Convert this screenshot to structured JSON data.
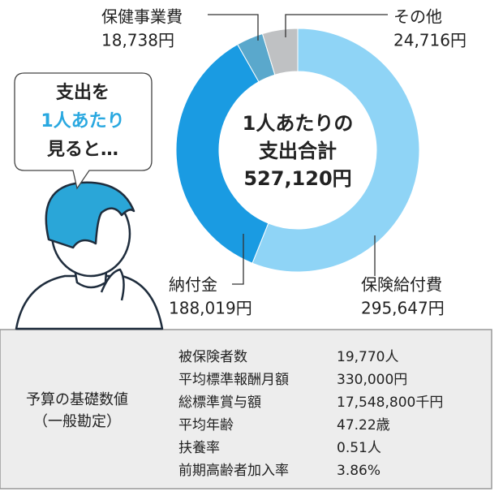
{
  "chart_data": {
    "type": "donut",
    "categories": [
      "保険給付費",
      "納付金",
      "保健事業費",
      "その他"
    ],
    "values": [
      295647,
      188019,
      18738,
      24716
    ],
    "value_labels": [
      "295,647円",
      "188,019円",
      "18,738円",
      "24,716円"
    ],
    "colors": [
      "#8fd4f6",
      "#1a9be2",
      "#5aa8cc",
      "#bfc1c3"
    ],
    "center_text": [
      "1人あたりの",
      "支出合計",
      "527,120円"
    ]
  },
  "bubble": [
    "支出を",
    "1人あたり",
    "見ると…"
  ],
  "budget": {
    "title": [
      "予算の基礎数値",
      "（一般勘定）"
    ],
    "rows": [
      [
        "被保険者数",
        "19,770人"
      ],
      [
        "平均標準報酬月額",
        "330,000円"
      ],
      [
        "総標準賞与額",
        "17,548,800千円"
      ],
      [
        "平均年齢",
        "47.22歳"
      ],
      [
        "扶養率",
        "0.51人"
      ],
      [
        "前期高齢者加入率",
        "3.86%"
      ]
    ]
  }
}
